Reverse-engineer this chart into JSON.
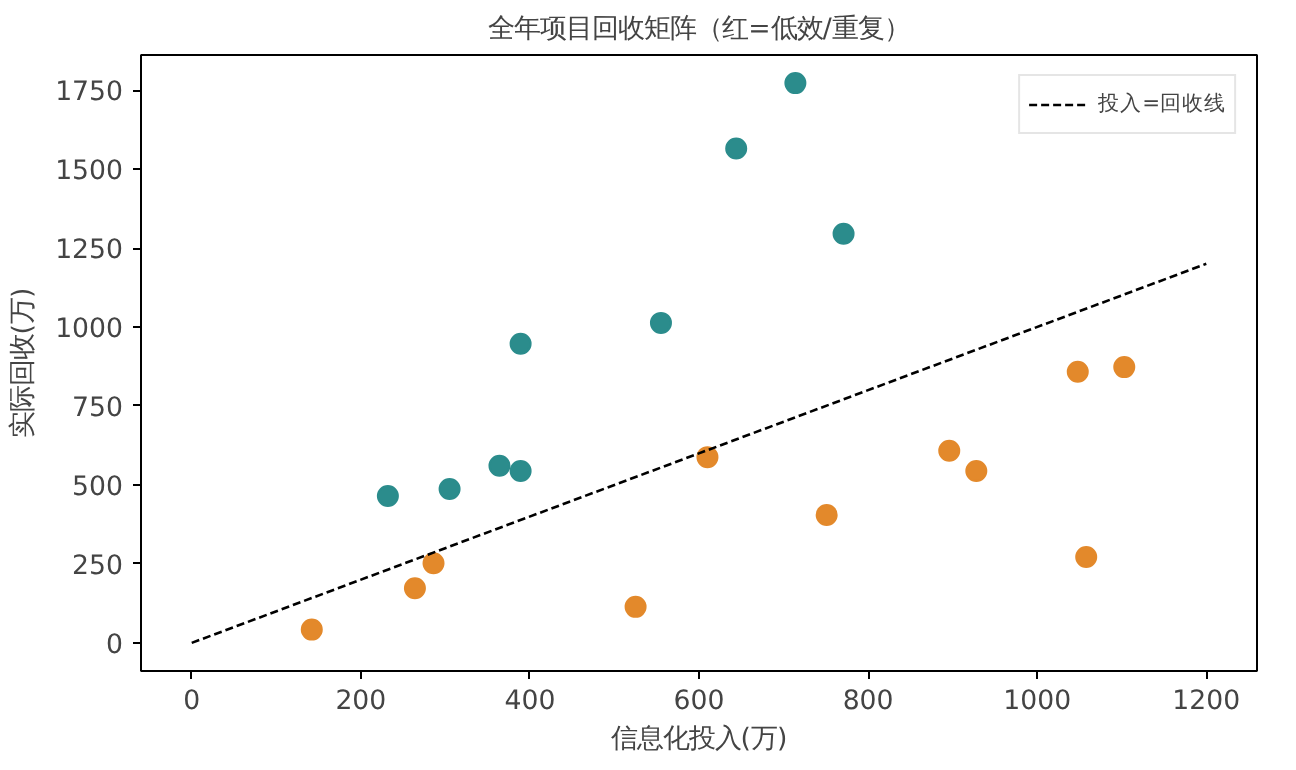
{
  "chart_data": {
    "type": "scatter",
    "title": "全年项目回收矩阵（红=低效/重复）",
    "xlabel": "信息化投入(万)",
    "ylabel": "实际回收(万)",
    "xlim": [
      -60,
      1260
    ],
    "ylim": [
      -89,
      1861
    ],
    "xticks": [
      0,
      200,
      400,
      600,
      800,
      1000,
      1200
    ],
    "yticks": [
      0,
      250,
      500,
      750,
      1000,
      1250,
      1500,
      1750
    ],
    "grid": false,
    "legend": "top right",
    "marker": "circle",
    "series": [
      {
        "color": "#2b8c8c",
        "x": [
          232,
          305,
          364,
          389,
          389,
          555,
          644,
          714,
          771
        ],
        "values": [
          465,
          487,
          561,
          544,
          947,
          1013,
          1565,
          1772,
          1295
        ]
      },
      {
        "color": "#e3892b",
        "x": [
          142,
          264,
          286,
          525,
          610,
          751,
          896,
          928,
          1048,
          1058,
          1103
        ],
        "values": [
          42,
          173,
          252,
          114,
          588,
          405,
          608,
          544,
          858,
          272,
          873
        ]
      },
      {
        "type": "line",
        "name": "投入=回收线",
        "color": "#000000",
        "line_style": "dashed",
        "marker": "none",
        "x": [
          0,
          1200
        ],
        "values": [
          0,
          1200
        ]
      }
    ]
  }
}
